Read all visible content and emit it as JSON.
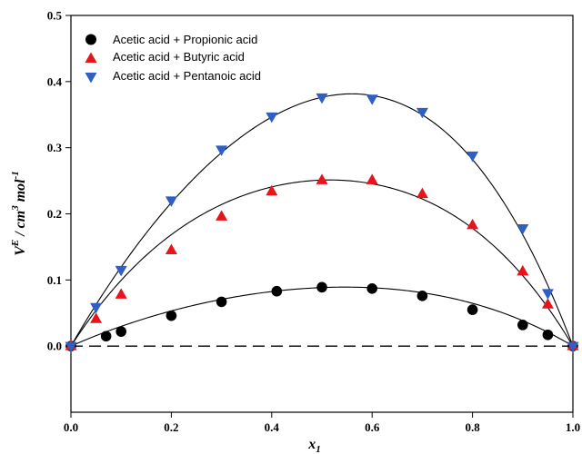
{
  "chart_data": {
    "type": "scatter",
    "title": "",
    "xlabel": {
      "main": "x",
      "sub": "1"
    },
    "ylabel": {
      "v": "V",
      "sup": "E",
      "rest": " / cm",
      "sup3": "3",
      "mol": " mol",
      "sup_neg1": "-1"
    },
    "xlim": [
      0.0,
      1.0
    ],
    "ylim": [
      -0.1,
      0.5
    ],
    "x_ticks": [
      "0.0",
      "0.2",
      "0.4",
      "0.6",
      "0.8",
      "1.0"
    ],
    "y_ticks": [
      "0.0",
      "0.1",
      "0.2",
      "0.3",
      "0.4",
      "0.5"
    ],
    "grid": false,
    "legend_position": "top-left",
    "baseline": {
      "y": 0.0,
      "style": "dashed"
    },
    "series": [
      {
        "name": "Acetic acid + Propionic acid",
        "marker": "circle",
        "color": "#000000",
        "x": [
          0.0,
          0.07,
          0.1,
          0.2,
          0.3,
          0.41,
          0.5,
          0.6,
          0.7,
          0.8,
          0.9,
          0.95,
          1.0
        ],
        "y": [
          0.0,
          0.015,
          0.022,
          0.046,
          0.067,
          0.083,
          0.089,
          0.087,
          0.076,
          0.055,
          0.032,
          0.017,
          0.0
        ]
      },
      {
        "name": "Acetic acid + Butyric acid",
        "marker": "triangle-up",
        "color": "#e8141b",
        "x": [
          0.0,
          0.05,
          0.1,
          0.2,
          0.3,
          0.4,
          0.5,
          0.6,
          0.7,
          0.8,
          0.9,
          0.95,
          1.0
        ],
        "y": [
          0.0,
          0.041,
          0.078,
          0.145,
          0.196,
          0.234,
          0.251,
          0.251,
          0.23,
          0.183,
          0.113,
          0.063,
          0.0
        ]
      },
      {
        "name": "Acetic acid + Pentanoic acid",
        "marker": "triangle-down",
        "color": "#2f5ec4",
        "x": [
          0.0,
          0.05,
          0.1,
          0.2,
          0.3,
          0.4,
          0.5,
          0.6,
          0.7,
          0.8,
          0.9,
          0.95,
          1.0
        ],
        "y": [
          0.0,
          0.059,
          0.115,
          0.22,
          0.297,
          0.347,
          0.376,
          0.374,
          0.354,
          0.288,
          0.178,
          0.08,
          0.0
        ]
      }
    ],
    "fit_curves": [
      {
        "series": "Acetic acid + Propionic acid",
        "color": "#000000",
        "a": [
          0.354,
          0.06,
          0.04
        ]
      },
      {
        "series": "Acetic acid + Butyric acid",
        "color": "#000000",
        "a": [
          1.004,
          0.05,
          0.22
        ]
      },
      {
        "series": "Acetic acid + Pentanoic acid",
        "color": "#000000",
        "a": [
          1.505,
          0.34,
          0.15
        ]
      }
    ]
  }
}
